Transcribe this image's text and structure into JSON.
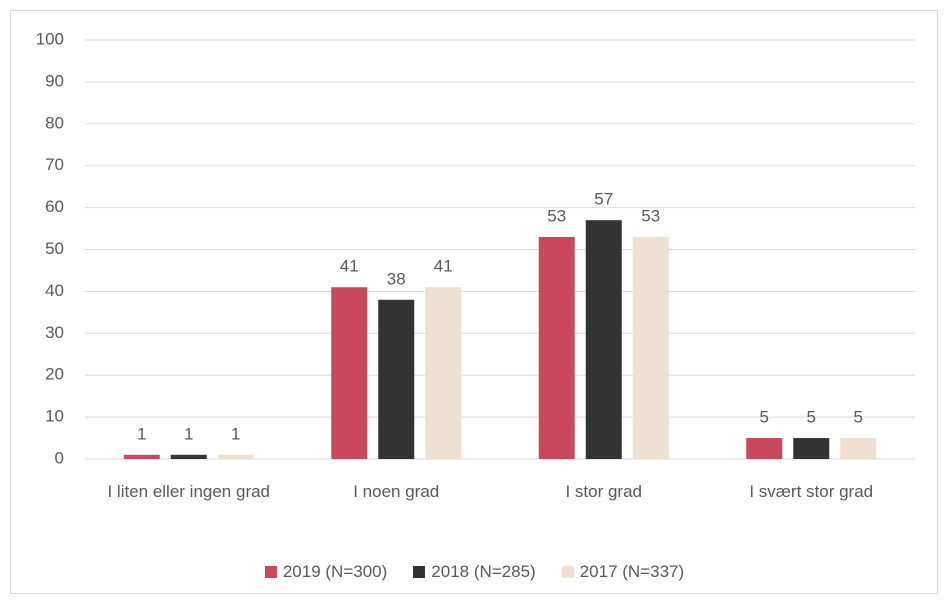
{
  "chart_data": {
    "type": "bar",
    "categories": [
      "I liten eller ingen grad",
      "I noen grad",
      "I stor grad",
      "I svært stor grad"
    ],
    "series": [
      {
        "name": "2019 (N=300)",
        "color": "#c9485b",
        "values": [
          1,
          41,
          53,
          5
        ]
      },
      {
        "name": "2018 (N=285)",
        "color": "#333333",
        "values": [
          1,
          38,
          57,
          5
        ]
      },
      {
        "name": "2017 (N=337)",
        "color": "#eee0d0",
        "values": [
          1,
          41,
          53,
          5
        ]
      }
    ],
    "ylim": [
      0,
      100
    ],
    "yticks": [
      0,
      10,
      20,
      30,
      40,
      50,
      60,
      70,
      80,
      90,
      100
    ],
    "grid": true,
    "legend": "bottom"
  }
}
